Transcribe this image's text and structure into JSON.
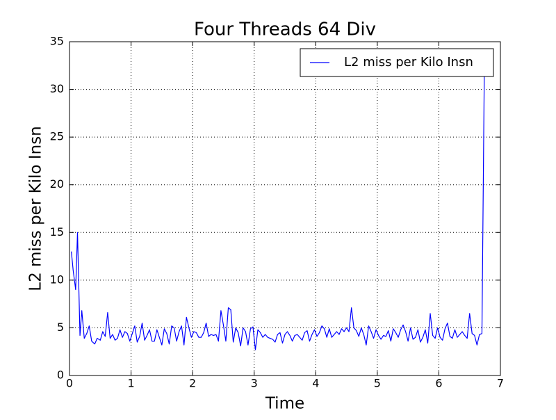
{
  "chart_data": {
    "type": "line",
    "title": "Four Threads 64 Div",
    "xlabel": "Time",
    "ylabel": "L2 miss per Kilo Insn",
    "x": [
      0.03,
      0.06,
      0.1,
      0.13,
      0.17,
      0.2,
      0.24,
      0.28,
      0.32,
      0.36,
      0.41,
      0.45,
      0.5,
      0.54,
      0.58,
      0.62,
      0.66,
      0.7,
      0.74,
      0.78,
      0.82,
      0.86,
      0.9,
      0.94,
      0.98,
      1.02,
      1.06,
      1.1,
      1.14,
      1.18,
      1.22,
      1.26,
      1.3,
      1.34,
      1.38,
      1.42,
      1.46,
      1.5,
      1.54,
      1.58,
      1.62,
      1.66,
      1.7,
      1.74,
      1.78,
      1.82,
      1.86,
      1.9,
      1.94,
      1.98,
      2.02,
      2.06,
      2.1,
      2.14,
      2.18,
      2.22,
      2.26,
      2.3,
      2.34,
      2.38,
      2.42,
      2.46,
      2.5,
      2.54,
      2.58,
      2.62,
      2.66,
      2.7,
      2.74,
      2.78,
      2.82,
      2.86,
      2.9,
      2.94,
      2.98,
      3.02,
      3.06,
      3.1,
      3.14,
      3.18,
      3.22,
      3.26,
      3.3,
      3.34,
      3.38,
      3.42,
      3.46,
      3.5,
      3.54,
      3.58,
      3.62,
      3.66,
      3.7,
      3.74,
      3.78,
      3.82,
      3.86,
      3.9,
      3.94,
      3.98,
      4.02,
      4.06,
      4.1,
      4.14,
      4.18,
      4.22,
      4.26,
      4.3,
      4.34,
      4.38,
      4.42,
      4.46,
      4.5,
      4.54,
      4.58,
      4.62,
      4.66,
      4.7,
      4.74,
      4.78,
      4.82,
      4.86,
      4.9,
      4.94,
      4.98,
      5.02,
      5.06,
      5.1,
      5.14,
      5.18,
      5.22,
      5.26,
      5.3,
      5.34,
      5.38,
      5.42,
      5.46,
      5.5,
      5.54,
      5.58,
      5.62,
      5.66,
      5.7,
      5.74,
      5.78,
      5.82,
      5.86,
      5.9,
      5.94,
      5.98,
      6.02,
      6.06,
      6.1,
      6.14,
      6.18,
      6.22,
      6.26,
      6.3,
      6.34,
      6.38,
      6.42,
      6.46,
      6.5,
      6.54,
      6.58,
      6.62,
      6.66,
      6.7,
      6.74
    ],
    "series": [
      {
        "name": "L2 miss per Kilo Insn",
        "color": "#0000ff",
        "values": [
          13,
          11,
          9,
          15,
          4.2,
          6.8,
          3.9,
          4.4,
          5.2,
          3.6,
          3.3,
          3.9,
          3.7,
          4.6,
          4.1,
          6.6,
          3.9,
          4.3,
          3.7,
          3.9,
          4.8,
          4.0,
          4.6,
          4.4,
          3.6,
          4.4,
          5.2,
          3.5,
          4.1,
          5.5,
          3.7,
          4.2,
          4.8,
          3.6,
          3.6,
          4.8,
          4.0,
          3.2,
          4.9,
          4.4,
          3.3,
          5.2,
          5.0,
          3.6,
          4.6,
          5.2,
          3.2,
          6.1,
          5.0,
          4.0,
          4.6,
          4.5,
          4.0,
          4.0,
          4.5,
          5.5,
          4.1,
          4.3,
          4.2,
          4.3,
          3.6,
          6.8,
          5.3,
          3.6,
          7.1,
          6.9,
          3.5,
          5.0,
          4.5,
          3.1,
          5.0,
          4.6,
          3.2,
          4.9,
          5.1,
          2.7,
          4.8,
          4.5,
          4.0,
          4.3,
          4.0,
          3.9,
          3.8,
          3.5,
          4.3,
          4.5,
          3.4,
          4.3,
          4.6,
          4.2,
          3.6,
          4.2,
          4.3,
          4.0,
          3.7,
          4.5,
          4.7,
          3.6,
          4.3,
          4.8,
          4.1,
          4.5,
          5.2,
          4.9,
          4.0,
          4.9,
          4.0,
          4.3,
          4.6,
          4.3,
          4.9,
          4.6,
          5.0,
          4.6,
          7.1,
          5.0,
          4.7,
          4.1,
          5.0,
          4.3,
          3.2,
          5.2,
          4.6,
          3.9,
          4.8,
          4.2,
          3.8,
          4.2,
          4.1,
          4.7,
          3.6,
          4.9,
          4.5,
          4.0,
          4.8,
          5.3,
          4.6,
          3.6,
          5.0,
          3.8,
          4.0,
          4.8,
          3.5,
          4.0,
          4.8,
          3.4,
          6.5,
          4.2,
          3.9,
          5.0,
          4.0,
          3.7,
          4.9,
          5.5,
          4.1,
          3.9,
          4.8,
          4.0,
          4.3,
          4.6,
          4.2,
          3.9,
          6.5,
          4.4,
          4.2,
          3.2,
          4.3,
          4.4,
          33
        ]
      }
    ],
    "xlim": [
      0,
      7
    ],
    "xticks": [
      0,
      1,
      2,
      3,
      4,
      5,
      6,
      7
    ],
    "ylim": [
      0,
      35
    ],
    "yticks": [
      0,
      5,
      10,
      15,
      20,
      25,
      30,
      35
    ],
    "grid": true,
    "legend": "upper right"
  }
}
